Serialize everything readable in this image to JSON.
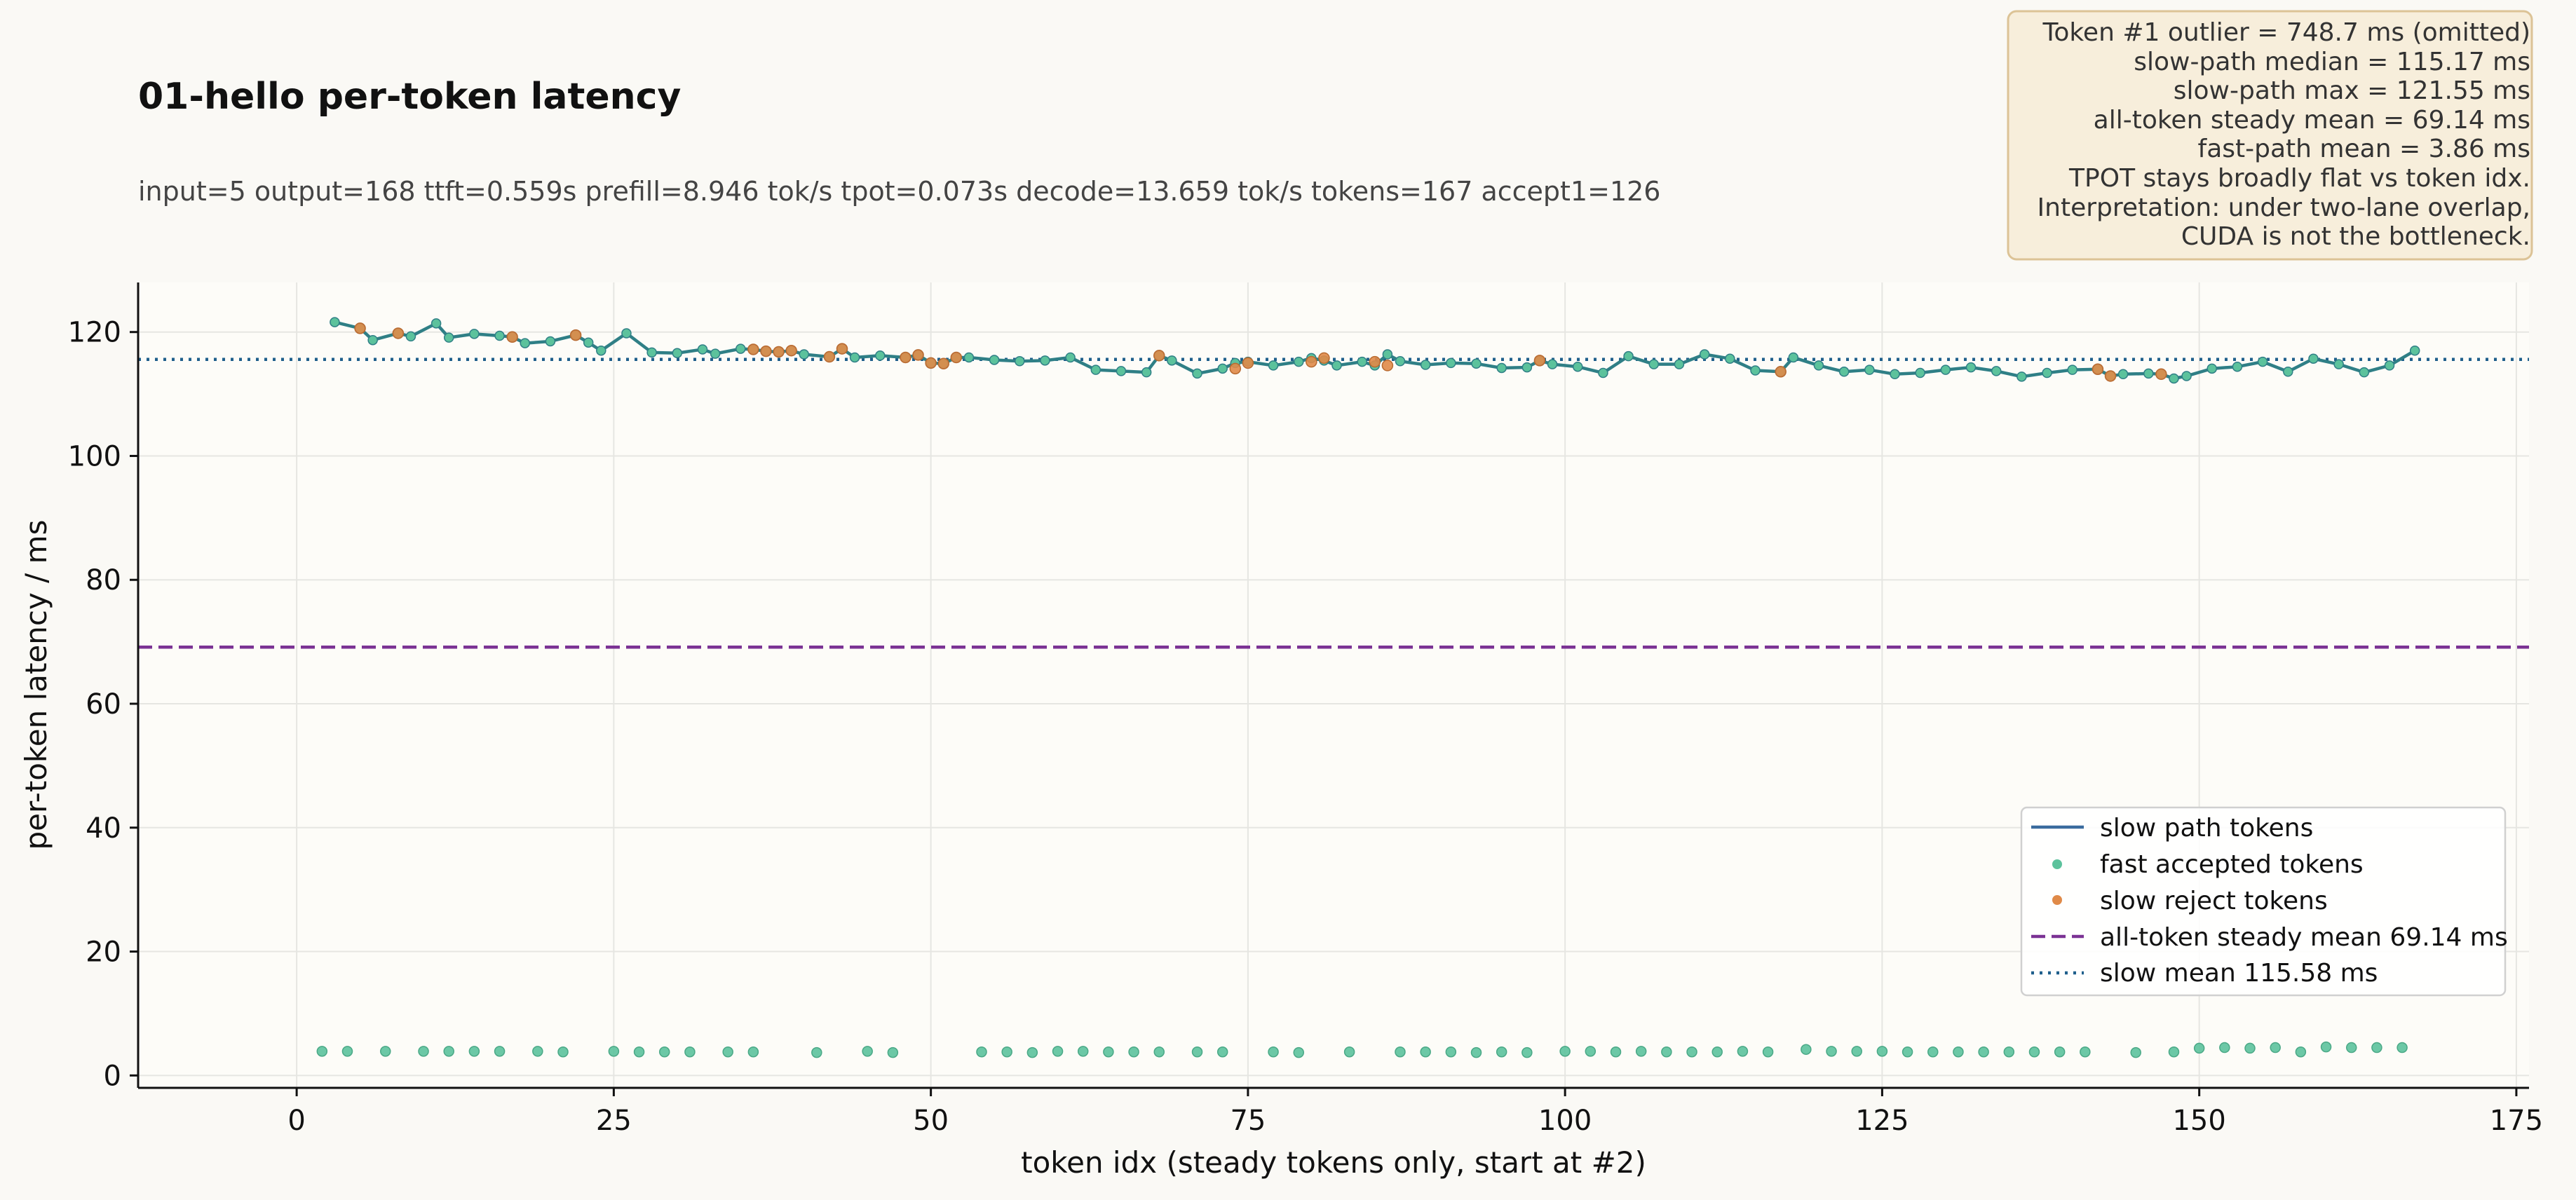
{
  "chart_data": {
    "type": "scatter",
    "title": "01-hello per-token latency",
    "subtitle": "input=5  output=168  ttft=0.559s  prefill=8.946 tok/s  tpot=0.073s  decode=13.659 tok/s  tokens=167  accept1=126",
    "xlabel": "token idx (steady tokens only, start at #2)",
    "ylabel": "per-token latency / ms",
    "xlim": [
      -12.5,
      176
    ],
    "ylim": [
      -2,
      128
    ],
    "x_ticks": [
      0,
      25,
      50,
      75,
      100,
      125,
      150,
      175
    ],
    "y_ticks": [
      0,
      20,
      40,
      60,
      80,
      100,
      120
    ],
    "grid": true,
    "legend_position": "lower-right",
    "colors": {
      "slow_line": "#2f7f86",
      "fast_points": "#5cc29c",
      "reject_points": "#e08a48",
      "mean_all": "#7b3294",
      "slow_mean": "#1f5f8b",
      "note_bg": "#f7eedb",
      "note_border": "#dcc396",
      "legend_line": "#3a6b9e"
    },
    "series": [
      {
        "name": "slow path tokens",
        "kind": "line",
        "x": [
          3,
          5,
          6,
          8,
          9,
          11,
          12,
          14,
          16,
          17,
          18,
          20,
          22,
          23,
          24,
          26,
          28,
          30,
          32,
          33,
          35,
          36,
          37,
          38,
          39,
          40,
          42,
          43,
          44,
          46,
          48,
          49,
          50,
          51,
          52,
          53,
          55,
          57,
          59,
          61,
          63,
          65,
          67,
          68,
          69,
          71,
          73,
          74,
          75,
          77,
          79,
          80,
          81,
          82,
          84,
          85,
          86,
          87,
          89,
          91,
          93,
          95,
          97,
          98,
          99,
          101,
          103,
          105,
          107,
          109,
          111,
          113,
          115,
          117,
          118,
          120,
          122,
          124,
          126,
          128,
          130,
          132,
          134,
          136,
          138,
          140,
          142,
          143,
          144,
          146,
          147,
          148,
          149,
          151,
          153,
          155,
          157,
          159,
          161,
          163,
          165,
          167
        ],
        "values": [
          121.6,
          120.6,
          118.7,
          119.8,
          119.3,
          121.4,
          119.1,
          119.7,
          119.4,
          119.2,
          118.2,
          118.5,
          119.5,
          118.3,
          117.0,
          119.8,
          116.7,
          116.6,
          117.2,
          116.5,
          117.3,
          117.2,
          116.9,
          116.8,
          117.0,
          116.4,
          116.0,
          117.3,
          115.9,
          116.2,
          115.9,
          116.3,
          115.0,
          114.9,
          115.9,
          115.9,
          115.5,
          115.3,
          115.4,
          115.9,
          113.9,
          113.7,
          113.5,
          116.2,
          115.4,
          113.3,
          114.1,
          115.0,
          115.2,
          114.6,
          115.2,
          115.8,
          115.4,
          114.6,
          115.2,
          114.6,
          116.4,
          115.3,
          114.7,
          115.0,
          114.9,
          114.2,
          114.3,
          115.4,
          114.8,
          114.4,
          113.4,
          116.1,
          114.8,
          114.8,
          116.4,
          115.7,
          113.8,
          113.6,
          115.9,
          114.6,
          113.6,
          113.9,
          113.2,
          113.4,
          113.9,
          114.3,
          113.7,
          112.8,
          113.4,
          113.9,
          114.0,
          112.9,
          113.2,
          113.3,
          113.2,
          112.5,
          112.9,
          114.1,
          114.4,
          115.2,
          113.6,
          115.7,
          114.8,
          113.5,
          114.6,
          117.0
        ]
      },
      {
        "name": "fast accepted tokens",
        "kind": "points",
        "x": [
          2,
          4,
          7,
          10,
          12,
          14,
          16,
          19,
          21,
          25,
          27,
          29,
          31,
          34,
          36,
          41,
          45,
          47,
          54,
          56,
          58,
          60,
          62,
          64,
          66,
          68,
          71,
          73,
          77,
          79,
          83,
          87,
          89,
          91,
          93,
          95,
          97,
          100,
          102,
          104,
          106,
          108,
          110,
          112,
          114,
          116,
          119,
          121,
          123,
          125,
          127,
          129,
          131,
          133,
          135,
          137,
          139,
          141,
          145,
          148,
          150,
          152,
          154,
          156,
          158,
          160,
          162,
          164,
          166
        ],
        "values": [
          3.9,
          3.9,
          3.9,
          3.9,
          3.9,
          3.9,
          3.9,
          3.9,
          3.8,
          3.9,
          3.8,
          3.8,
          3.8,
          3.8,
          3.8,
          3.7,
          3.9,
          3.7,
          3.8,
          3.8,
          3.7,
          3.9,
          3.9,
          3.8,
          3.8,
          3.8,
          3.8,
          3.8,
          3.8,
          3.7,
          3.8,
          3.8,
          3.8,
          3.8,
          3.7,
          3.8,
          3.7,
          3.9,
          3.9,
          3.8,
          3.9,
          3.8,
          3.8,
          3.8,
          3.9,
          3.8,
          4.2,
          3.9,
          3.9,
          3.9,
          3.8,
          3.8,
          3.8,
          3.8,
          3.8,
          3.8,
          3.8,
          3.8,
          3.7,
          3.8,
          4.4,
          4.5,
          4.4,
          4.5,
          3.8,
          4.6,
          4.5,
          4.5,
          4.5
        ]
      },
      {
        "name": "slow reject tokens",
        "kind": "points",
        "x": [
          5,
          8,
          17,
          22,
          36,
          37,
          38,
          39,
          42,
          43,
          48,
          49,
          50,
          51,
          52,
          68,
          74,
          75,
          80,
          81,
          85,
          86,
          98,
          117,
          142,
          143,
          147
        ],
        "values": [
          120.6,
          119.8,
          119.2,
          119.5,
          117.2,
          116.9,
          116.8,
          117.0,
          116.0,
          117.3,
          115.9,
          116.3,
          115.0,
          114.9,
          115.9,
          116.2,
          114.1,
          115.0,
          115.2,
          115.8,
          115.2,
          114.6,
          115.4,
          113.6,
          114.0,
          112.9,
          113.2
        ]
      },
      {
        "name": "all-token steady mean 69.14 ms",
        "kind": "hline",
        "y": 69.14
      },
      {
        "name": "slow mean 115.58 ms",
        "kind": "hline",
        "y": 115.58
      }
    ],
    "annotation": [
      "Token #1 outlier = 748.7 ms (omitted)",
      "slow-path median = 115.17 ms",
      "slow-path max = 121.55 ms",
      "all-token steady mean = 69.14 ms",
      "fast-path mean = 3.86 ms",
      "TPOT stays broadly flat vs token idx.",
      "Interpretation: under two-lane overlap,",
      "CUDA is not the bottleneck."
    ]
  }
}
